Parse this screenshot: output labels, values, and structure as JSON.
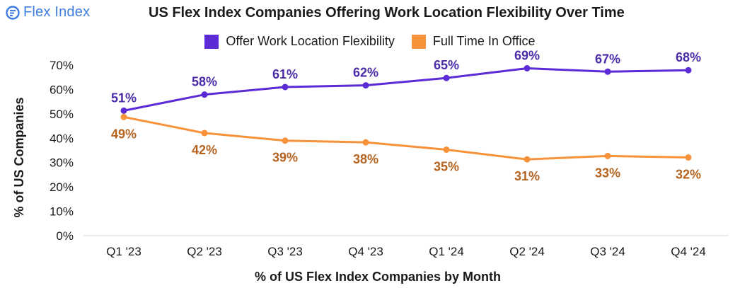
{
  "logo": {
    "text": "Flex Index",
    "icon": "flex-index-logo-icon",
    "color": "#3f7de0"
  },
  "chart_data": {
    "type": "line",
    "title": "US Flex Index Companies Offering Work Location Flexibility Over Time",
    "xlabel": "% of US Flex Index Companies by Month",
    "ylabel": "% of US Companies",
    "categories": [
      "Q1 '23",
      "Q2 '23",
      "Q3 '23",
      "Q4 '23",
      "Q1 '24",
      "Q2 '24",
      "Q3 '24",
      "Q4 '24"
    ],
    "ylim": [
      0,
      70
    ],
    "yticks": [
      0,
      10,
      20,
      30,
      40,
      50,
      60,
      70
    ],
    "ytick_labels": [
      "0%",
      "10%",
      "20%",
      "30%",
      "40%",
      "50%",
      "60%",
      "70%"
    ],
    "legend_position": "top-center",
    "series": [
      {
        "name": "Offer Work Location Flexibility",
        "color": "#5b2bd6",
        "label_color": "#4b2ba8",
        "values": [
          51.3,
          57.9,
          61,
          61.7,
          64.7,
          68.7,
          67.3,
          67.9
        ],
        "labels": [
          "51%",
          "58%",
          "61%",
          "62%",
          "65%",
          "69%",
          "67%",
          "68%"
        ],
        "label_side": "above"
      },
      {
        "name": "Full Time In Office",
        "color": "#f7923a",
        "label_color": "#b5631f",
        "values": [
          48.7,
          42.1,
          39,
          38.3,
          35.3,
          31.3,
          32.7,
          32.1
        ],
        "labels": [
          "49%",
          "42%",
          "39%",
          "38%",
          "35%",
          "31%",
          "33%",
          "32%"
        ],
        "label_side": "below"
      }
    ]
  }
}
